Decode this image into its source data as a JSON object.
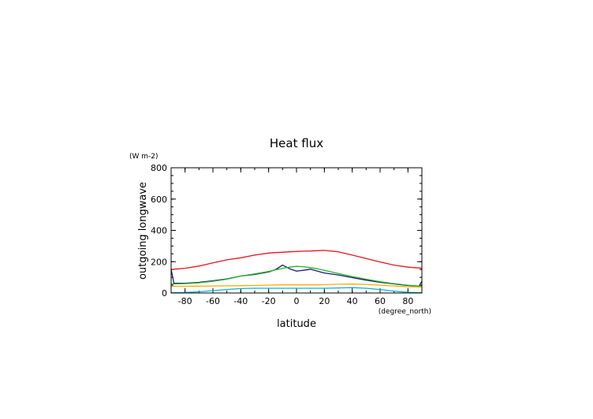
{
  "chart_data": {
    "type": "line",
    "title": "Heat flux",
    "xlabel": "latitude",
    "ylabel": "outgoing longwave",
    "xunits": "(degree_north)",
    "yunits": "(W m-2)",
    "xlim": [
      -90,
      90
    ],
    "ylim": [
      0,
      800
    ],
    "xticks": [
      -80,
      -60,
      -40,
      -20,
      0,
      20,
      40,
      60,
      80
    ],
    "yticks": [
      0,
      200,
      400,
      600,
      800
    ],
    "grid": false,
    "legend": "none",
    "x": [
      -90,
      -88,
      -80,
      -70,
      -60,
      -50,
      -40,
      -30,
      -20,
      -15,
      -10,
      -5,
      0,
      5,
      10,
      15,
      20,
      30,
      40,
      50,
      60,
      70,
      80,
      88,
      90
    ],
    "series": [
      {
        "color": "#e8141e",
        "values": [
          150,
          152,
          158,
          172,
          192,
          212,
          225,
          242,
          255,
          258,
          260,
          263,
          265,
          267,
          268,
          270,
          272,
          263,
          242,
          220,
          198,
          178,
          165,
          160,
          158
        ]
      },
      {
        "color": "#1a1a7c",
        "values": [
          152,
          62,
          62,
          68,
          78,
          90,
          108,
          118,
          135,
          150,
          178,
          155,
          140,
          145,
          152,
          140,
          128,
          115,
          98,
          82,
          68,
          58,
          48,
          45,
          75
        ]
      },
      {
        "color": "#22b422",
        "values": [
          58,
          58,
          60,
          65,
          75,
          88,
          108,
          122,
          138,
          148,
          158,
          165,
          170,
          168,
          162,
          155,
          145,
          125,
          105,
          88,
          72,
          60,
          50,
          45,
          45
        ]
      },
      {
        "color": "#ffaa00",
        "values": [
          43,
          43,
          43,
          44,
          45,
          46,
          47,
          48,
          50,
          51,
          52,
          52,
          52,
          52,
          52,
          52,
          53,
          56,
          57,
          55,
          50,
          45,
          40,
          38,
          38
        ]
      },
      {
        "color": "#00b4dc",
        "values": [
          2,
          2,
          3,
          8,
          15,
          22,
          28,
          30,
          30,
          30,
          30,
          30,
          30,
          30,
          30,
          30,
          30,
          32,
          34,
          30,
          22,
          12,
          4,
          2,
          2
        ]
      }
    ]
  }
}
